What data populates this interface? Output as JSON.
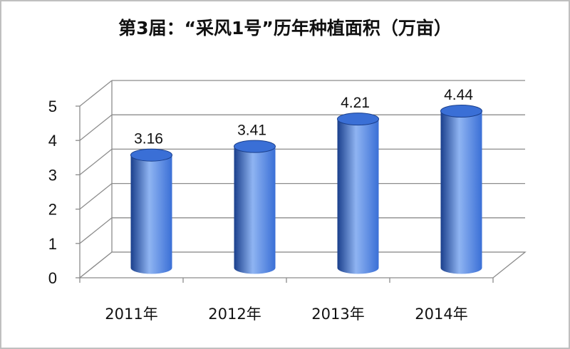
{
  "chart_data": {
    "type": "bar",
    "title": "第3届：“采风1号”历年种植面积（万亩）",
    "categories": [
      "2011年",
      "2012年",
      "2013年",
      "2014年"
    ],
    "values": [
      3.16,
      3.41,
      4.21,
      4.44
    ],
    "data_labels": [
      "3.16",
      "3.41",
      "4.21",
      "4.44"
    ],
    "ylim": [
      0,
      5
    ],
    "yticks": [
      "0",
      "1",
      "2",
      "3",
      "4",
      "5"
    ],
    "xlabel": "",
    "ylabel": "",
    "grid": true,
    "style": "3d-cylinder",
    "colors": {
      "bar_dark": "#1a3f8c",
      "bar_mid": "#3a6fd6",
      "bar_light": "#8fb4f2",
      "grid": "#8c8c8c"
    }
  }
}
